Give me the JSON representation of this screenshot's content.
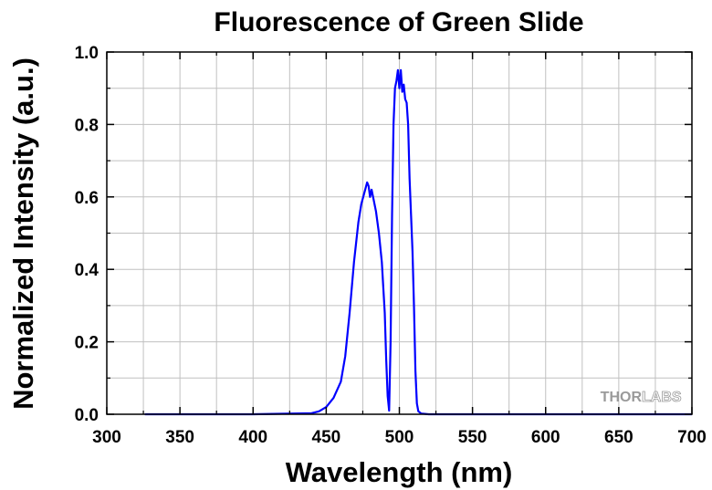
{
  "chart_data": {
    "type": "line",
    "title": "Fluorescence of Green Slide",
    "xlabel": "Wavelength (nm)",
    "ylabel": "Normalized Intensity (a.u.)",
    "xlim": [
      300,
      700
    ],
    "ylim": [
      0,
      1.0
    ],
    "x_ticks": [
      300,
      350,
      400,
      450,
      500,
      550,
      600,
      650,
      700
    ],
    "x_tick_labels": [
      "300",
      "350",
      "400",
      "450",
      "500",
      "550",
      "600",
      "650",
      "700"
    ],
    "y_ticks": [
      0,
      0.2,
      0.4,
      0.6,
      0.8,
      1.0
    ],
    "y_tick_labels": [
      "0.0",
      "0.2",
      "0.4",
      "0.6",
      "0.8",
      "1.0"
    ],
    "grid": true,
    "series": [
      {
        "color": "#0000ff",
        "x": [
          326,
          400,
          440,
          445,
          450,
          455,
          460,
          463,
          466,
          469,
          472,
          474,
          476,
          478,
          479,
          480,
          481,
          482,
          484,
          486,
          488,
          490,
          491,
          492,
          493,
          494,
          495,
          496,
          497,
          498,
          499,
          500,
          501,
          502,
          503,
          504,
          505,
          506,
          507,
          508,
          509,
          510,
          511,
          512,
          513,
          515,
          520,
          550,
          600,
          650,
          700
        ],
        "y": [
          0.0,
          0.0,
          0.003,
          0.008,
          0.02,
          0.045,
          0.09,
          0.16,
          0.28,
          0.42,
          0.53,
          0.58,
          0.61,
          0.64,
          0.63,
          0.6,
          0.62,
          0.6,
          0.56,
          0.5,
          0.42,
          0.28,
          0.15,
          0.05,
          0.01,
          0.2,
          0.55,
          0.8,
          0.9,
          0.92,
          0.95,
          0.9,
          0.95,
          0.89,
          0.91,
          0.87,
          0.86,
          0.8,
          0.65,
          0.55,
          0.45,
          0.3,
          0.12,
          0.03,
          0.008,
          0.002,
          0.0,
          0.0,
          0.0,
          0.0,
          0.0
        ]
      }
    ],
    "colors": {
      "line": "#0000ff",
      "grid": "#c0c0c0",
      "axis": "#000000"
    }
  },
  "watermark": {
    "text_left": "THOR",
    "text_right": "LABS"
  }
}
